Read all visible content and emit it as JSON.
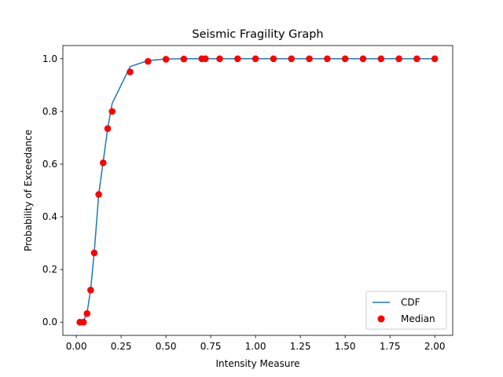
{
  "chart_data": {
    "type": "line",
    "title": "Seismic Fragility Graph",
    "xlabel": "Intensity Measure",
    "ylabel": "Probability of Exceedance",
    "xlim": [
      -0.075,
      2.1
    ],
    "ylim": [
      -0.05,
      1.05
    ],
    "xticks": [
      0.0,
      0.25,
      0.5,
      0.75,
      1.0,
      1.25,
      1.5,
      1.75,
      2.0
    ],
    "xtick_labels": [
      "0.00",
      "0.25",
      "0.50",
      "0.75",
      "1.00",
      "1.25",
      "1.50",
      "1.75",
      "2.00"
    ],
    "yticks": [
      0.0,
      0.2,
      0.4,
      0.6,
      0.8,
      1.0
    ],
    "ytick_labels": [
      "0.0",
      "0.2",
      "0.4",
      "0.6",
      "0.8",
      "1.0"
    ],
    "grid": false,
    "legend_position": "lower right",
    "series": [
      {
        "name": "CDF",
        "kind": "line",
        "color": "#1f77b4",
        "x": [
          0.02,
          0.04,
          0.06,
          0.08,
          0.1,
          0.125,
          0.15,
          0.175,
          0.2,
          0.3,
          0.4,
          0.5,
          0.6,
          0.7,
          0.72,
          0.8,
          0.9,
          1.0,
          1.1,
          1.2,
          1.3,
          1.4,
          1.5,
          1.6,
          1.7,
          1.8,
          1.9,
          2.0
        ],
        "y": [
          0.0,
          0.005,
          0.035,
          0.125,
          0.265,
          0.485,
          0.61,
          0.735,
          0.83,
          0.97,
          0.993,
          0.999,
          1.0,
          1.0,
          1.0,
          1.0,
          1.0,
          1.0,
          1.0,
          1.0,
          1.0,
          1.0,
          1.0,
          1.0,
          1.0,
          1.0,
          1.0,
          1.0
        ]
      },
      {
        "name": "Median",
        "kind": "scatter",
        "color": "#ff0000",
        "x": [
          0.02,
          0.04,
          0.06,
          0.08,
          0.1,
          0.125,
          0.15,
          0.175,
          0.2,
          0.3,
          0.4,
          0.5,
          0.6,
          0.7,
          0.72,
          0.8,
          0.9,
          1.0,
          1.1,
          1.2,
          1.3,
          1.4,
          1.5,
          1.6,
          1.7,
          1.8,
          1.9,
          2.0
        ],
        "y": [
          0.0,
          0.0,
          0.033,
          0.122,
          0.263,
          0.485,
          0.605,
          0.735,
          0.8,
          0.95,
          0.99,
          0.998,
          0.999,
          1.0,
          1.0,
          1.0,
          1.0,
          1.0,
          1.0,
          1.0,
          1.0,
          1.0,
          1.0,
          1.0,
          1.0,
          1.0,
          1.0,
          1.0
        ]
      }
    ]
  }
}
